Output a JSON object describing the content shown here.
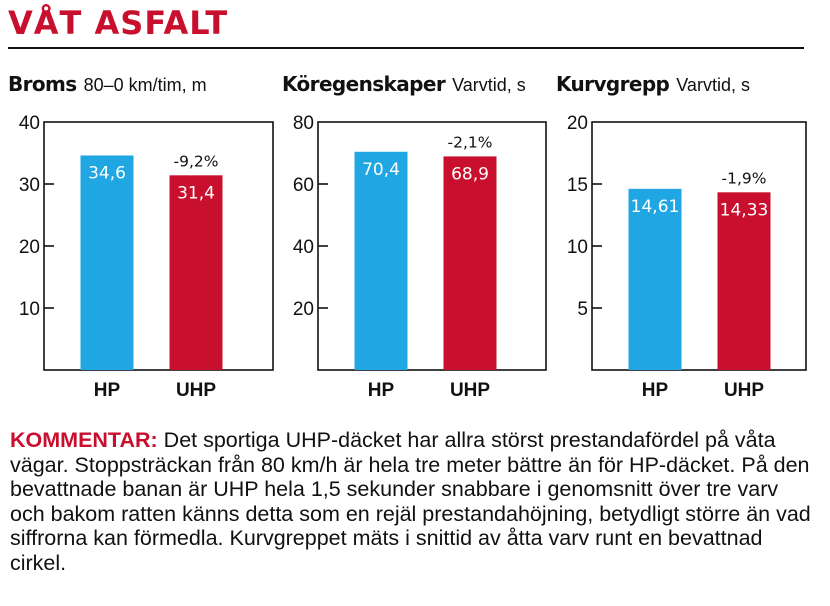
{
  "title": "VÅT ASFALT",
  "colors": {
    "accent": "#c8102e",
    "hp": "#1fa6e3",
    "uhp": "#c8102e"
  },
  "chart_data": [
    {
      "type": "bar",
      "title": "Broms",
      "subtitle": "80–0 km/tim, m",
      "categories": [
        "HP",
        "UHP"
      ],
      "values": [
        34.6,
        31.4
      ],
      "value_labels": [
        "34,6",
        "31,4"
      ],
      "change_labels": [
        "",
        "-9,2%"
      ],
      "yticks": [
        10,
        20,
        30,
        40
      ],
      "ylim": [
        0,
        40
      ],
      "grid": false
    },
    {
      "type": "bar",
      "title": "Köregenskaper",
      "subtitle": "Varvtid, s",
      "categories": [
        "HP",
        "UHP"
      ],
      "values": [
        70.4,
        68.9
      ],
      "value_labels": [
        "70,4",
        "68,9"
      ],
      "change_labels": [
        "",
        "-2,1%"
      ],
      "yticks": [
        20,
        40,
        60,
        80
      ],
      "ylim": [
        0,
        80
      ],
      "grid": false
    },
    {
      "type": "bar",
      "title": "Kurvgrepp",
      "subtitle": "Varvtid, s",
      "categories": [
        "HP",
        "UHP"
      ],
      "values": [
        14.61,
        14.33
      ],
      "value_labels": [
        "14,61",
        "14,33"
      ],
      "change_labels": [
        "",
        "-1,9%"
      ],
      "yticks": [
        5,
        10,
        15,
        20
      ],
      "ylim": [
        0,
        20
      ],
      "grid": false
    }
  ],
  "comment": {
    "lead": "KOMMENTAR:",
    "text": "Det sportiga UHP-däcket har allra störst prestandafördel på våta vägar. Stoppsträckan från 80 km/h är hela tre meter bättre än för HP-däcket. På den bevattnade banan är UHP hela 1,5 sekunder snabbare i genomsnitt över tre varv och bakom ratten känns detta som en rejäl prestandahöjning, betydligt större än vad siffrorna kan förmedla. Kurvgreppet mäts i snittid av åtta varv runt en bevattnad cirkel."
  }
}
